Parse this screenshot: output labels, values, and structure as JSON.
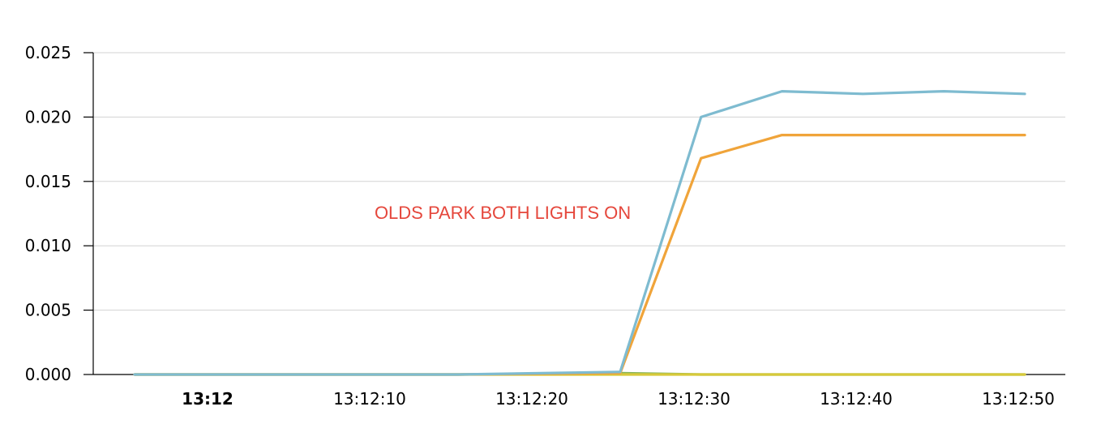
{
  "chart_data": {
    "type": "line",
    "title": "",
    "xlabel": "",
    "ylabel": "",
    "x_ticks": [
      {
        "label": "13:12",
        "t": 0,
        "major": true
      },
      {
        "label": "13:12:10",
        "t": 10,
        "major": false
      },
      {
        "label": "13:12:20",
        "t": 20,
        "major": false
      },
      {
        "label": "13:12:30",
        "t": 30,
        "major": false
      },
      {
        "label": "13:12:40",
        "t": 40,
        "major": false
      },
      {
        "label": "13:12:50",
        "t": 50,
        "major": false
      }
    ],
    "x_time_range": [
      "13:11:55",
      "13:12:50"
    ],
    "y_ticks": [
      "0.000",
      "0.005",
      "0.010",
      "0.015",
      "0.020",
      "0.025"
    ],
    "ylim": [
      0,
      0.025
    ],
    "grid": true,
    "annotation": {
      "text": "OLDS PARK BOTH LIGHTS ON",
      "color": "#e5473c",
      "x_time": "13:12:21",
      "y": 0.0126
    },
    "series": [
      {
        "color": "#7ebbd0",
        "points": [
          {
            "x": "13:11:55",
            "y": 0.0
          },
          {
            "x": "13:12:05",
            "y": 0.0
          },
          {
            "x": "13:12:15",
            "y": 0.0
          },
          {
            "x": "13:12:25",
            "y": 0.0002
          },
          {
            "x": "13:12:30",
            "y": 0.02
          },
          {
            "x": "13:12:35",
            "y": 0.022
          },
          {
            "x": "13:12:40",
            "y": 0.0218
          },
          {
            "x": "13:12:45",
            "y": 0.022
          },
          {
            "x": "13:12:50",
            "y": 0.0218
          }
        ]
      },
      {
        "color": "#f0a43a",
        "points": [
          {
            "x": "13:11:55",
            "y": 0.0
          },
          {
            "x": "13:12:05",
            "y": 0.0
          },
          {
            "x": "13:12:15",
            "y": 0.0
          },
          {
            "x": "13:12:25",
            "y": 0.0001
          },
          {
            "x": "13:12:30",
            "y": 0.0168
          },
          {
            "x": "13:12:35",
            "y": 0.0186
          },
          {
            "x": "13:12:40",
            "y": 0.0186
          },
          {
            "x": "13:12:45",
            "y": 0.0186
          },
          {
            "x": "13:12:50",
            "y": 0.0186
          }
        ]
      },
      {
        "color": "#d7c93a",
        "points": [
          {
            "x": "13:11:55",
            "y": 0.0
          },
          {
            "x": "13:12:05",
            "y": 0.0
          },
          {
            "x": "13:12:15",
            "y": 0.0
          },
          {
            "x": "13:12:25",
            "y": 0.0
          },
          {
            "x": "13:12:30",
            "y": 0.0
          },
          {
            "x": "13:12:35",
            "y": 0.0
          },
          {
            "x": "13:12:40",
            "y": 0.0
          },
          {
            "x": "13:12:45",
            "y": 0.0
          },
          {
            "x": "13:12:50",
            "y": 0.0
          }
        ]
      },
      {
        "color": "#86b35a",
        "points": [
          {
            "x": "13:11:55",
            "y": 0.0
          },
          {
            "x": "13:12:15",
            "y": 0.0
          },
          {
            "x": "13:12:25",
            "y": 0.0001
          },
          {
            "x": "13:12:30",
            "y": 0.0
          },
          {
            "x": "13:12:50",
            "y": 0.0
          }
        ]
      }
    ]
  }
}
